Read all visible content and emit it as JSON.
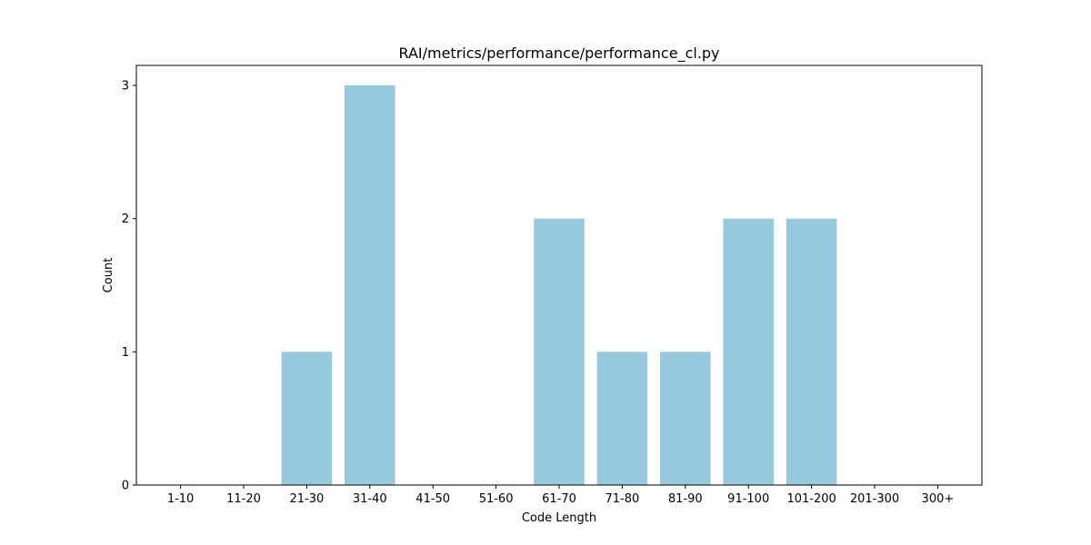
{
  "chart_data": {
    "type": "bar",
    "title": "RAI/metrics/performance/performance_cl.py",
    "xlabel": "Code Length",
    "ylabel": "Count",
    "categories": [
      "1-10",
      "11-20",
      "21-30",
      "31-40",
      "41-50",
      "51-60",
      "61-70",
      "71-80",
      "81-90",
      "91-100",
      "101-200",
      "201-300",
      "300+"
    ],
    "values": [
      0,
      0,
      1,
      3,
      0,
      0,
      2,
      1,
      1,
      2,
      2,
      0,
      0
    ],
    "yticks": [
      0,
      1,
      2,
      3
    ],
    "ylim": [
      0,
      3.15
    ],
    "bar_color": "#96c8de",
    "grid": false,
    "legend": "none"
  }
}
